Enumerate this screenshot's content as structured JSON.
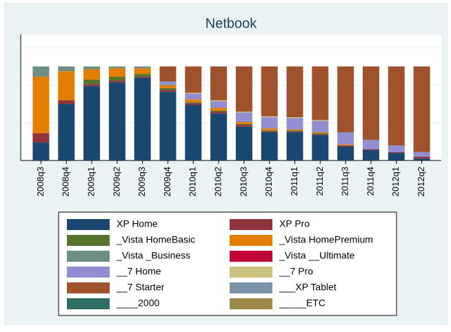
{
  "chart_data": {
    "type": "stacked_bar",
    "title": "Netbook",
    "categories": [
      "2008q3",
      "2008q4",
      "2009q1",
      "2009q2",
      "2009q3",
      "2009q4",
      "2010q1",
      "2010q2",
      "2010q3",
      "2010q4",
      "2011q1",
      "2011q2",
      "2011q3",
      "2011q4",
      "2012q1",
      "2012q2"
    ],
    "series": [
      {
        "name": "XP Home",
        "color": "#1a476f",
        "values": [
          0.19,
          0.6,
          0.79,
          0.83,
          0.88,
          0.73,
          0.59,
          0.5,
          0.36,
          0.3,
          0.3,
          0.27,
          0.15,
          0.11,
          0.08,
          0.02
        ]
      },
      {
        "name": "XP Pro",
        "color": "#90353b",
        "values": [
          0.1,
          0.04,
          0.02,
          0.02,
          0.01,
          0.02,
          0.02,
          0.02,
          0.02,
          0.01,
          0.01,
          0.01,
          0.01,
          0.01,
          0.01,
          0.02
        ]
      },
      {
        "name": "_Vista HomeBasic",
        "color": "#55752f",
        "values": [
          0,
          0,
          0.05,
          0.04,
          0.03,
          0.02,
          0.01,
          0.01,
          0.01,
          0.01,
          0.01,
          0.01,
          0,
          0,
          0,
          0
        ]
      },
      {
        "name": "_Vista HomePremium",
        "color": "#e37e00",
        "values": [
          0.6,
          0.31,
          0.11,
          0.09,
          0.06,
          0.03,
          0.03,
          0.03,
          0.02,
          0.02,
          0.01,
          0.01,
          0.01,
          0,
          0,
          0
        ]
      },
      {
        "name": "_Vista _Business",
        "color": "#6e8e84",
        "values": [
          0.11,
          0.05,
          0.03,
          0.02,
          0.02,
          0.01,
          0,
          0,
          0,
          0,
          0,
          0,
          0,
          0,
          0,
          0
        ]
      },
      {
        "name": "_Vista __Ultimate",
        "color": "#c10534",
        "values": [
          0,
          0,
          0,
          0,
          0,
          0,
          0,
          0,
          0,
          0,
          0,
          0,
          0,
          0,
          0,
          0
        ]
      },
      {
        "name": "__7 Home",
        "color": "#938dd2",
        "values": [
          0,
          0,
          0,
          0,
          0,
          0.03,
          0.06,
          0.07,
          0.1,
          0.12,
          0.12,
          0.12,
          0.13,
          0.1,
          0.07,
          0.05
        ]
      },
      {
        "name": "__7 Pro",
        "color": "#cac27e",
        "values": [
          0,
          0,
          0,
          0,
          0,
          0,
          0.01,
          0.01,
          0.01,
          0.01,
          0.01,
          0.01,
          0,
          0,
          0,
          0
        ]
      },
      {
        "name": "__7 Starter",
        "color": "#a0522d",
        "values": [
          0,
          0,
          0,
          0,
          0,
          0.16,
          0.28,
          0.36,
          0.48,
          0.53,
          0.54,
          0.57,
          0.7,
          0.78,
          0.84,
          0.91
        ]
      },
      {
        "name": "___XP Tablet",
        "color": "#7b92a8",
        "values": [
          0,
          0,
          0,
          0,
          0,
          0,
          0,
          0,
          0,
          0,
          0,
          0,
          0,
          0,
          0,
          0
        ]
      },
      {
        "name": "____2000",
        "color": "#2d6d66",
        "values": [
          0,
          0,
          0,
          0,
          0,
          0,
          0,
          0,
          0,
          0,
          0,
          0,
          0,
          0,
          0,
          0
        ]
      },
      {
        "name": "_____ETC",
        "color": "#9c8847",
        "values": [
          0,
          0,
          0,
          0,
          0,
          0,
          0,
          0,
          0,
          0,
          0,
          0,
          0,
          0,
          0,
          0
        ]
      }
    ],
    "ylim": [
      0,
      1.34
    ],
    "yticks": [
      0,
      0.4,
      0.8,
      1.2
    ],
    "grid": true
  }
}
